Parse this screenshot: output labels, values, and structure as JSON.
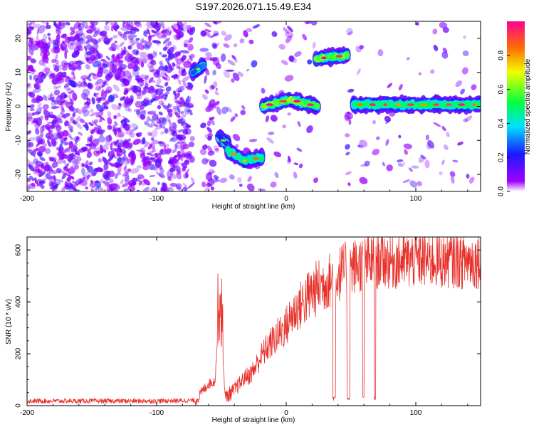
{
  "figure_title": "S197.2026.071.15.49.E34",
  "colors": {
    "axis": "#000000",
    "snr_line": "#e8302a",
    "background": "#ffffff"
  },
  "chart_data": [
    {
      "type": "heatmap",
      "title": "S197.2026.071.15.49.E34",
      "xlabel": "Height of straight line (km)",
      "ylabel": "Frequency (Hz)",
      "xlim": [
        -200,
        150
      ],
      "ylim": [
        -25,
        25
      ],
      "xticks": [
        -200,
        -100,
        0,
        100
      ],
      "yticks": [
        -20,
        -10,
        0,
        10,
        20
      ],
      "colorbar": {
        "label": "Normalized spectral amplitude",
        "range": [
          0,
          1
        ],
        "ticks": [
          0.0,
          0.2,
          0.4,
          0.6,
          0.8
        ]
      },
      "noise_regions": [
        {
          "x_start": -200,
          "x_end": -72,
          "density": 1.0
        },
        {
          "x_start": -64,
          "x_end": -52,
          "density": 0.6
        },
        {
          "x_start": -49,
          "x_end": -19,
          "density": 0.15
        },
        {
          "x_start": -18,
          "x_end": 24,
          "density": 0.1
        },
        {
          "x_start": 47,
          "x_end": 50,
          "density": 0.5
        },
        {
          "x_start": 55,
          "x_end": 150,
          "density": 0.08
        }
      ],
      "features": [
        {
          "x": [
            -72,
            -64
          ],
          "freq": [
            10,
            12
          ],
          "amplitude": 0.3
        },
        {
          "x": [
            -52,
            -45
          ],
          "freq": [
            -9,
            -11
          ],
          "amplitude": 0.2
        },
        {
          "x": [
            -45,
            -19
          ],
          "freq": [
            -13,
            -16,
            -15
          ],
          "amplitude": 0.5
        },
        {
          "x": [
            -18,
            24
          ],
          "freq": [
            0,
            2,
            0
          ],
          "amplitude": 0.65
        },
        {
          "x": [
            23,
            47
          ],
          "freq": [
            14,
            15
          ],
          "amplitude": 0.65
        },
        {
          "x": [
            52,
            150
          ],
          "freq": [
            0.5,
            0.5
          ],
          "amplitude": 0.55
        }
      ]
    },
    {
      "type": "line",
      "title": "",
      "xlabel": "Height of straight line (km)",
      "ylabel": "SNR (10 * v/v)",
      "xlim": [
        -200,
        150
      ],
      "ylim": [
        0,
        650
      ],
      "xticks": [
        -200,
        -100,
        0,
        100
      ],
      "yticks": [
        0,
        200,
        400,
        600
      ],
      "series": [
        {
          "name": "SNR",
          "x": [
            -200,
            -150,
            -100,
            -70,
            -65,
            -60,
            -55,
            -52,
            -50,
            -47,
            -45,
            -40,
            -35,
            -30,
            -25,
            -20,
            -15,
            -10,
            -5,
            0,
            5,
            10,
            15,
            20,
            25,
            30,
            35,
            40,
            45,
            50,
            55,
            60,
            65,
            70,
            75,
            80,
            85,
            90,
            95,
            100,
            105,
            110,
            115,
            120,
            125,
            130,
            135,
            140,
            145,
            150
          ],
          "values": [
            18,
            18,
            18,
            20,
            60,
            90,
            100,
            350,
            300,
            30,
            40,
            60,
            90,
            120,
            150,
            200,
            240,
            270,
            300,
            330,
            380,
            410,
            440,
            470,
            490,
            505,
            520,
            540,
            555,
            565,
            575,
            580,
            585,
            590,
            595,
            590,
            590,
            590,
            590,
            595,
            595,
            590,
            595,
            590,
            595,
            595,
            590,
            595,
            590,
            595
          ]
        }
      ],
      "dropouts": [
        {
          "x": [
            36,
            38
          ],
          "value": 30
        },
        {
          "x": [
            47,
            49
          ],
          "value": 30
        },
        {
          "x": [
            59,
            60
          ],
          "value": 30
        },
        {
          "x": [
            68,
            69
          ],
          "value": 30
        }
      ]
    }
  ]
}
